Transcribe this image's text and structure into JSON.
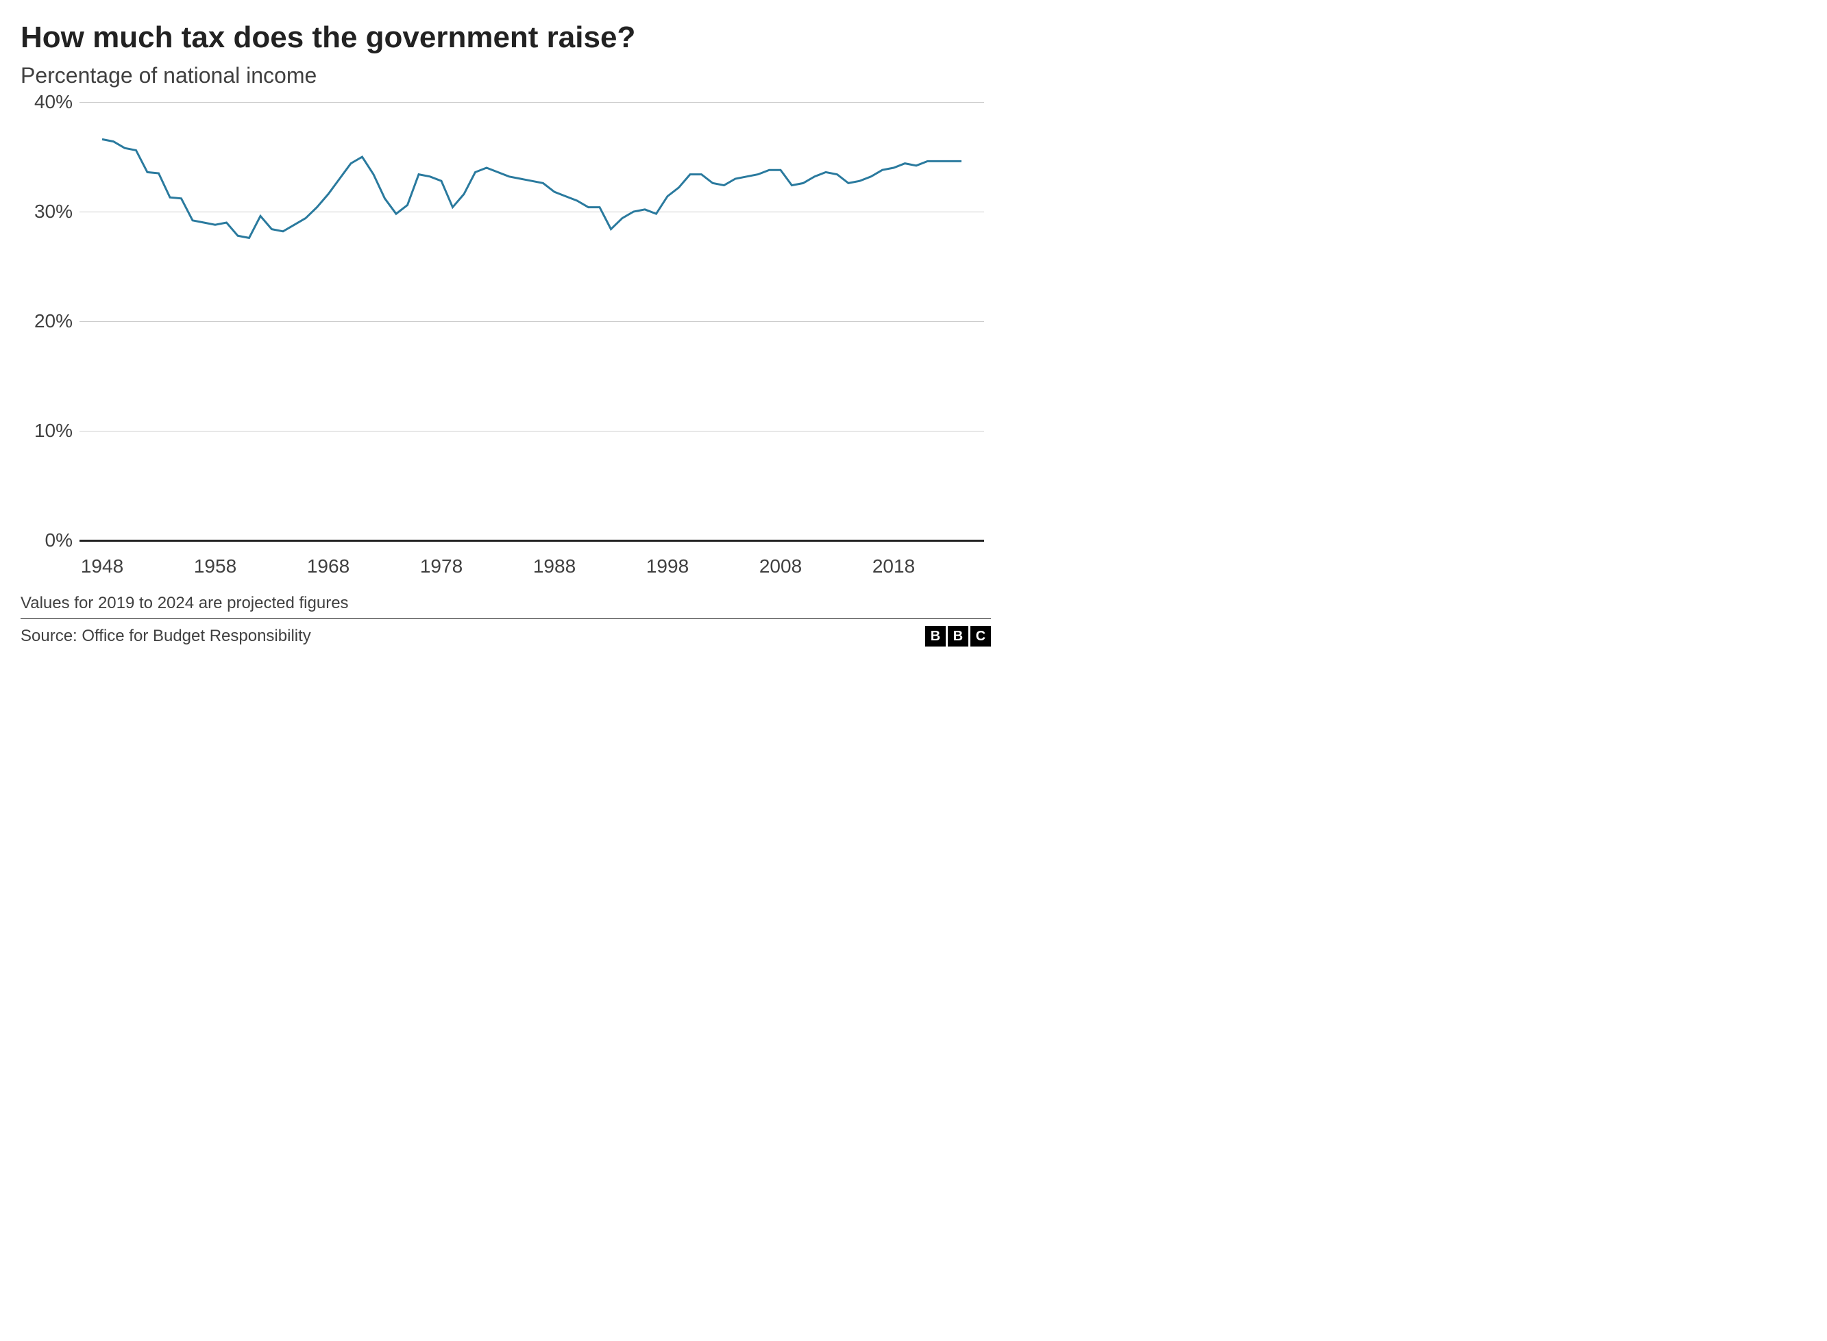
{
  "title": "How much tax does the government raise?",
  "subtitle": "Percentage of national income",
  "footnote": "Values for 2019 to 2024 are projected figures",
  "source": "Source: Office for Budget Responsibility",
  "logo_letters": [
    "B",
    "B",
    "C"
  ],
  "chart": {
    "type": "line",
    "line_color": "#2a7a9e",
    "line_width": 3,
    "background_color": "#ffffff",
    "grid_color": "#cccccc",
    "baseline_color": "#222222",
    "xlim": [
      1946,
      2026
    ],
    "ylim": [
      0,
      40
    ],
    "yticks": [
      0,
      10,
      20,
      30,
      40
    ],
    "ytick_labels": [
      "0%",
      "10%",
      "20%",
      "30%",
      "40%"
    ],
    "xticks": [
      1948,
      1958,
      1968,
      1978,
      1988,
      1998,
      2008,
      2018
    ],
    "xtick_labels": [
      "1948",
      "1958",
      "1968",
      "1978",
      "1988",
      "1998",
      "2008",
      "2018"
    ],
    "label_fontsize": 28,
    "title_fontsize": 44,
    "subtitle_fontsize": 32,
    "years": [
      1948,
      1949,
      1950,
      1951,
      1952,
      1953,
      1954,
      1955,
      1956,
      1957,
      1958,
      1959,
      1960,
      1961,
      1962,
      1963,
      1964,
      1965,
      1966,
      1967,
      1968,
      1969,
      1970,
      1971,
      1972,
      1973,
      1974,
      1975,
      1976,
      1977,
      1978,
      1979,
      1980,
      1981,
      1982,
      1983,
      1984,
      1985,
      1986,
      1987,
      1988,
      1989,
      1990,
      1991,
      1992,
      1993,
      1994,
      1995,
      1996,
      1997,
      1998,
      1999,
      2000,
      2001,
      2002,
      2003,
      2004,
      2005,
      2006,
      2007,
      2008,
      2009,
      2010,
      2011,
      2012,
      2013,
      2014,
      2015,
      2016,
      2017,
      2018,
      2019,
      2020,
      2021,
      2022,
      2023,
      2024
    ],
    "values": [
      36.6,
      36.4,
      35.8,
      35.6,
      33.6,
      33.5,
      31.3,
      31.2,
      29.2,
      29.0,
      28.8,
      29.0,
      27.8,
      27.6,
      29.6,
      28.4,
      28.2,
      28.8,
      29.4,
      30.4,
      31.6,
      33.0,
      34.4,
      35.0,
      33.4,
      31.2,
      29.8,
      30.6,
      33.4,
      33.2,
      32.8,
      30.4,
      31.6,
      33.6,
      34.0,
      33.6,
      33.2,
      33.0,
      32.8,
      32.6,
      31.8,
      31.4,
      31.0,
      30.4,
      30.4,
      28.4,
      29.4,
      30.0,
      30.2,
      29.8,
      31.4,
      32.2,
      33.4,
      33.4,
      32.6,
      32.4,
      33.0,
      33.2,
      33.4,
      33.8,
      33.8,
      32.4,
      32.6,
      33.2,
      33.6,
      33.4,
      32.6,
      32.8,
      33.2,
      33.8,
      34.0,
      34.4,
      34.2,
      34.6,
      34.6,
      34.6,
      34.6
    ]
  }
}
